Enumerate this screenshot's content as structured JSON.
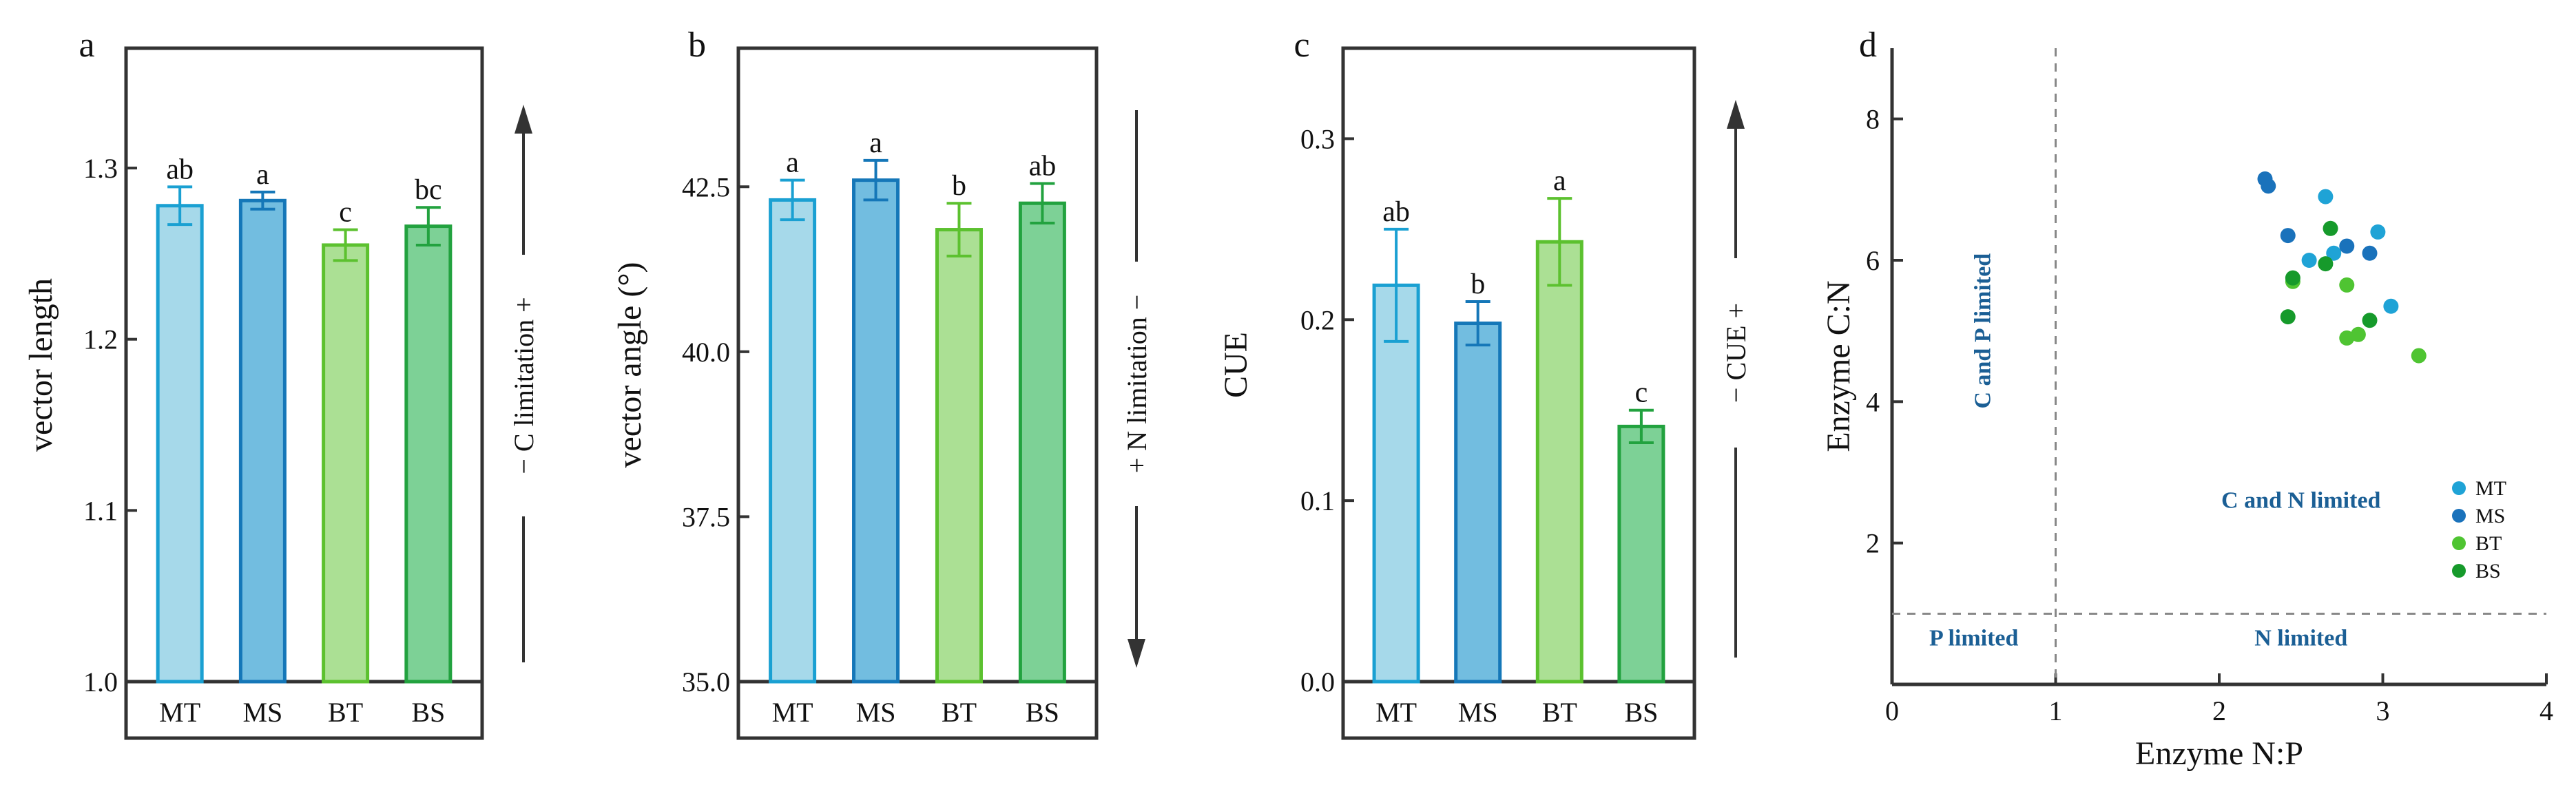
{
  "figure": {
    "colors": {
      "MT": "#a6d9ea",
      "MT_edge": "#1aa0d2",
      "MS": "#72bde0",
      "MS_edge": "#1577b8",
      "BT": "#abe094",
      "BT_edge": "#5cc12f",
      "BS": "#7dd196",
      "BS_edge": "#22a23f",
      "region_text": "#1b5f95",
      "scatter_MT": "#1fa3d6",
      "scatter_MS": "#1a72bb",
      "scatter_BT": "#4fc432",
      "scatter_BS": "#169a2b"
    }
  },
  "chart_data": [
    {
      "panel": "a",
      "type": "bar",
      "ylabel": "vector length",
      "side_label": "− C limitation +",
      "side_arrow": "up",
      "categories": [
        "MT",
        "MS",
        "BT",
        "BS"
      ],
      "values": [
        1.278,
        1.281,
        1.255,
        1.266
      ],
      "errors": [
        0.011,
        0.005,
        0.009,
        0.011
      ],
      "letters": [
        "ab",
        "a",
        "c",
        "bc"
      ],
      "ylim": [
        1.0,
        1.37
      ],
      "yticks": [
        1.0,
        1.1,
        1.2,
        1.3
      ],
      "ytick_labels": [
        "1.0",
        "1.1",
        "1.2",
        "1.3"
      ]
    },
    {
      "panel": "b",
      "type": "bar",
      "ylabel": "vector angle (°)",
      "side_label": "+ N limitation −",
      "side_arrow": "down",
      "categories": [
        "MT",
        "MS",
        "BT",
        "BS"
      ],
      "values": [
        42.3,
        42.6,
        41.85,
        42.25
      ],
      "errors": [
        0.3,
        0.3,
        0.4,
        0.3
      ],
      "letters": [
        "a",
        "a",
        "b",
        "ab"
      ],
      "ylim": [
        35.0,
        44.6
      ],
      "yticks": [
        35.0,
        37.5,
        40.0,
        42.5
      ],
      "ytick_labels": [
        "35.0",
        "37.5",
        "40.0",
        "42.5"
      ]
    },
    {
      "panel": "c",
      "type": "bar",
      "ylabel": "CUE",
      "side_label": "− CUE +",
      "side_arrow": "up",
      "categories": [
        "MT",
        "MS",
        "BT",
        "BS"
      ],
      "values": [
        0.219,
        0.198,
        0.243,
        0.141
      ],
      "errors": [
        0.031,
        0.012,
        0.024,
        0.009
      ],
      "letters": [
        "ab",
        "b",
        "a",
        "c"
      ],
      "ylim": [
        0.0,
        0.35
      ],
      "yticks": [
        0.0,
        0.1,
        0.2,
        0.3
      ],
      "ytick_labels": [
        "0.0",
        "0.1",
        "0.2",
        "0.3"
      ]
    },
    {
      "panel": "d",
      "type": "scatter",
      "xlabel": "Enzyme N:P",
      "ylabel": "Enzyme C:N",
      "xlim": [
        0,
        4
      ],
      "ylim": [
        0,
        9
      ],
      "xticks": [
        0,
        1,
        2,
        3,
        4
      ],
      "yticks": [
        2,
        4,
        6,
        8
      ],
      "ref_lines": {
        "x": 1,
        "y": 1
      },
      "regions": [
        {
          "label": "C and P limited",
          "x": 0.6,
          "y": 5.0,
          "rotate": true
        },
        {
          "label": "C and N limited",
          "x": 2.5,
          "y": 2.5,
          "rotate": false
        },
        {
          "label": "P limited",
          "x": 0.5,
          "y": 0.55,
          "rotate": false
        },
        {
          "label": "N limited",
          "x": 2.5,
          "y": 0.55,
          "rotate": false
        }
      ],
      "series": [
        {
          "name": "MT",
          "points": [
            [
              2.65,
              6.9
            ],
            [
              2.55,
              6.0
            ],
            [
              2.97,
              6.4
            ],
            [
              3.05,
              5.35
            ],
            [
              2.7,
              6.1
            ]
          ]
        },
        {
          "name": "MS",
          "points": [
            [
              2.28,
              7.15
            ],
            [
              2.3,
              7.05
            ],
            [
              2.42,
              6.35
            ],
            [
              2.78,
              6.2
            ],
            [
              2.92,
              6.1
            ]
          ]
        },
        {
          "name": "BT",
          "points": [
            [
              2.45,
              5.7
            ],
            [
              2.78,
              5.65
            ],
            [
              2.78,
              4.9
            ],
            [
              2.85,
              4.95
            ],
            [
              3.22,
              4.65
            ]
          ]
        },
        {
          "name": "BS",
          "points": [
            [
              2.68,
              6.45
            ],
            [
              2.65,
              5.95
            ],
            [
              2.45,
              5.75
            ],
            [
              2.42,
              5.2
            ],
            [
              2.92,
              5.15
            ]
          ]
        }
      ],
      "legend": [
        "MT",
        "MS",
        "BT",
        "BS"
      ]
    }
  ]
}
